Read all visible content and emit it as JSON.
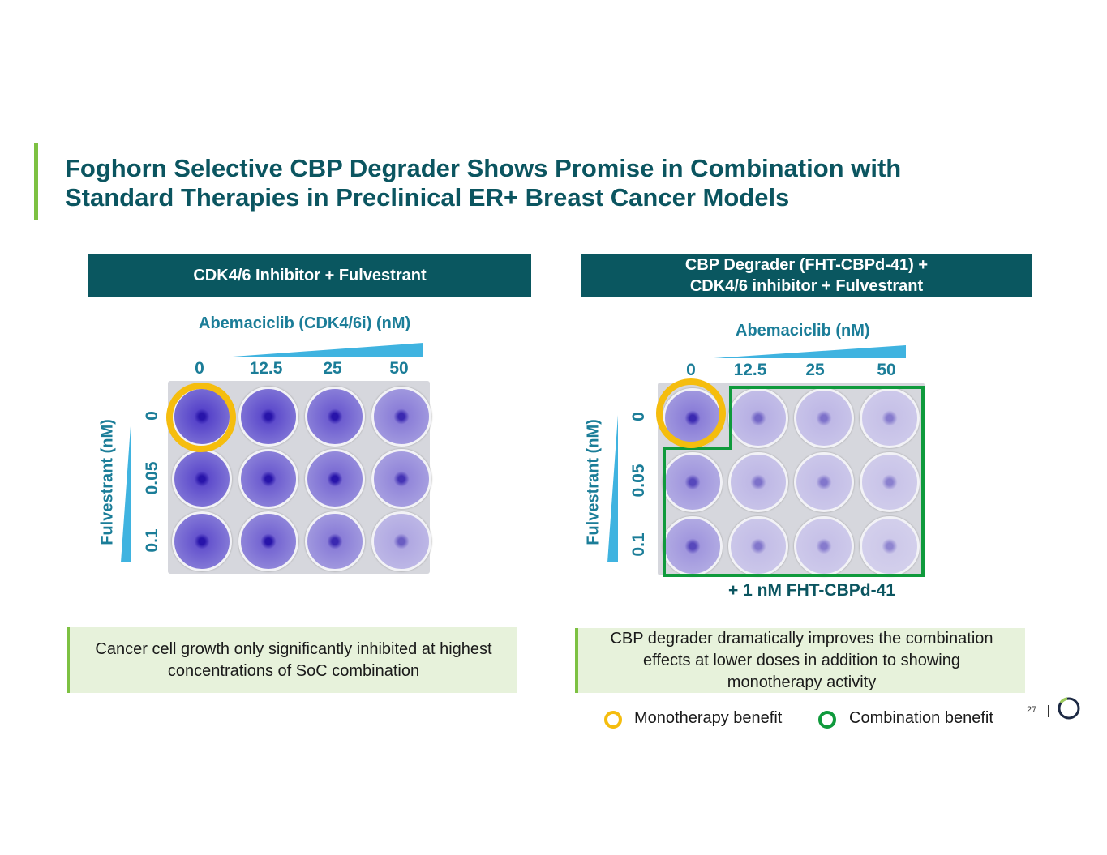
{
  "title_lines": [
    "Foghorn Selective CBP Degrader Shows Promise in Combination with",
    "Standard Therapies in Preclinical ER+ Breast Cancer Models"
  ],
  "left_panel": {
    "header": "CDK4/6 Inhibitor + Fulvestrant",
    "x_axis_label": "Abemaciclib (CDK4/6i) (nM)",
    "y_axis_label": "Fulvestrant (nM)",
    "columns": [
      "0",
      "12.5",
      "25",
      "50"
    ],
    "rows": [
      "0",
      "0.05",
      "0.1"
    ],
    "caption": "Cancer cell growth only significantly inhibited at highest concentrations of SoC combination"
  },
  "right_panel": {
    "header_lines": [
      "CBP Degrader (FHT-CBPd-41) +",
      "CDK4/6 inhibitor + Fulvestrant"
    ],
    "x_axis_label": "Abemaciclib (nM)",
    "y_axis_label": "Fulvestrant (nM)",
    "columns": [
      "0",
      "12.5",
      "25",
      "50"
    ],
    "rows": [
      "0",
      "0.05",
      "0.1"
    ],
    "plate_note": "+ 1 nM FHT-CBPd-41",
    "caption": "CBP degrader dramatically improves the combination effects at lower doses in addition to showing monotherapy activity"
  },
  "legend": [
    {
      "label": "Monotherapy benefit",
      "color": "#f5bd0e"
    },
    {
      "label": "Combination benefit",
      "color": "#0f9a3c"
    }
  ],
  "page_number": "27",
  "colors": {
    "brand_teal": "#0a5760",
    "accent_green": "#7dc142",
    "axis_blue": "#1b7d98",
    "wedge": "#3fb3e0"
  }
}
